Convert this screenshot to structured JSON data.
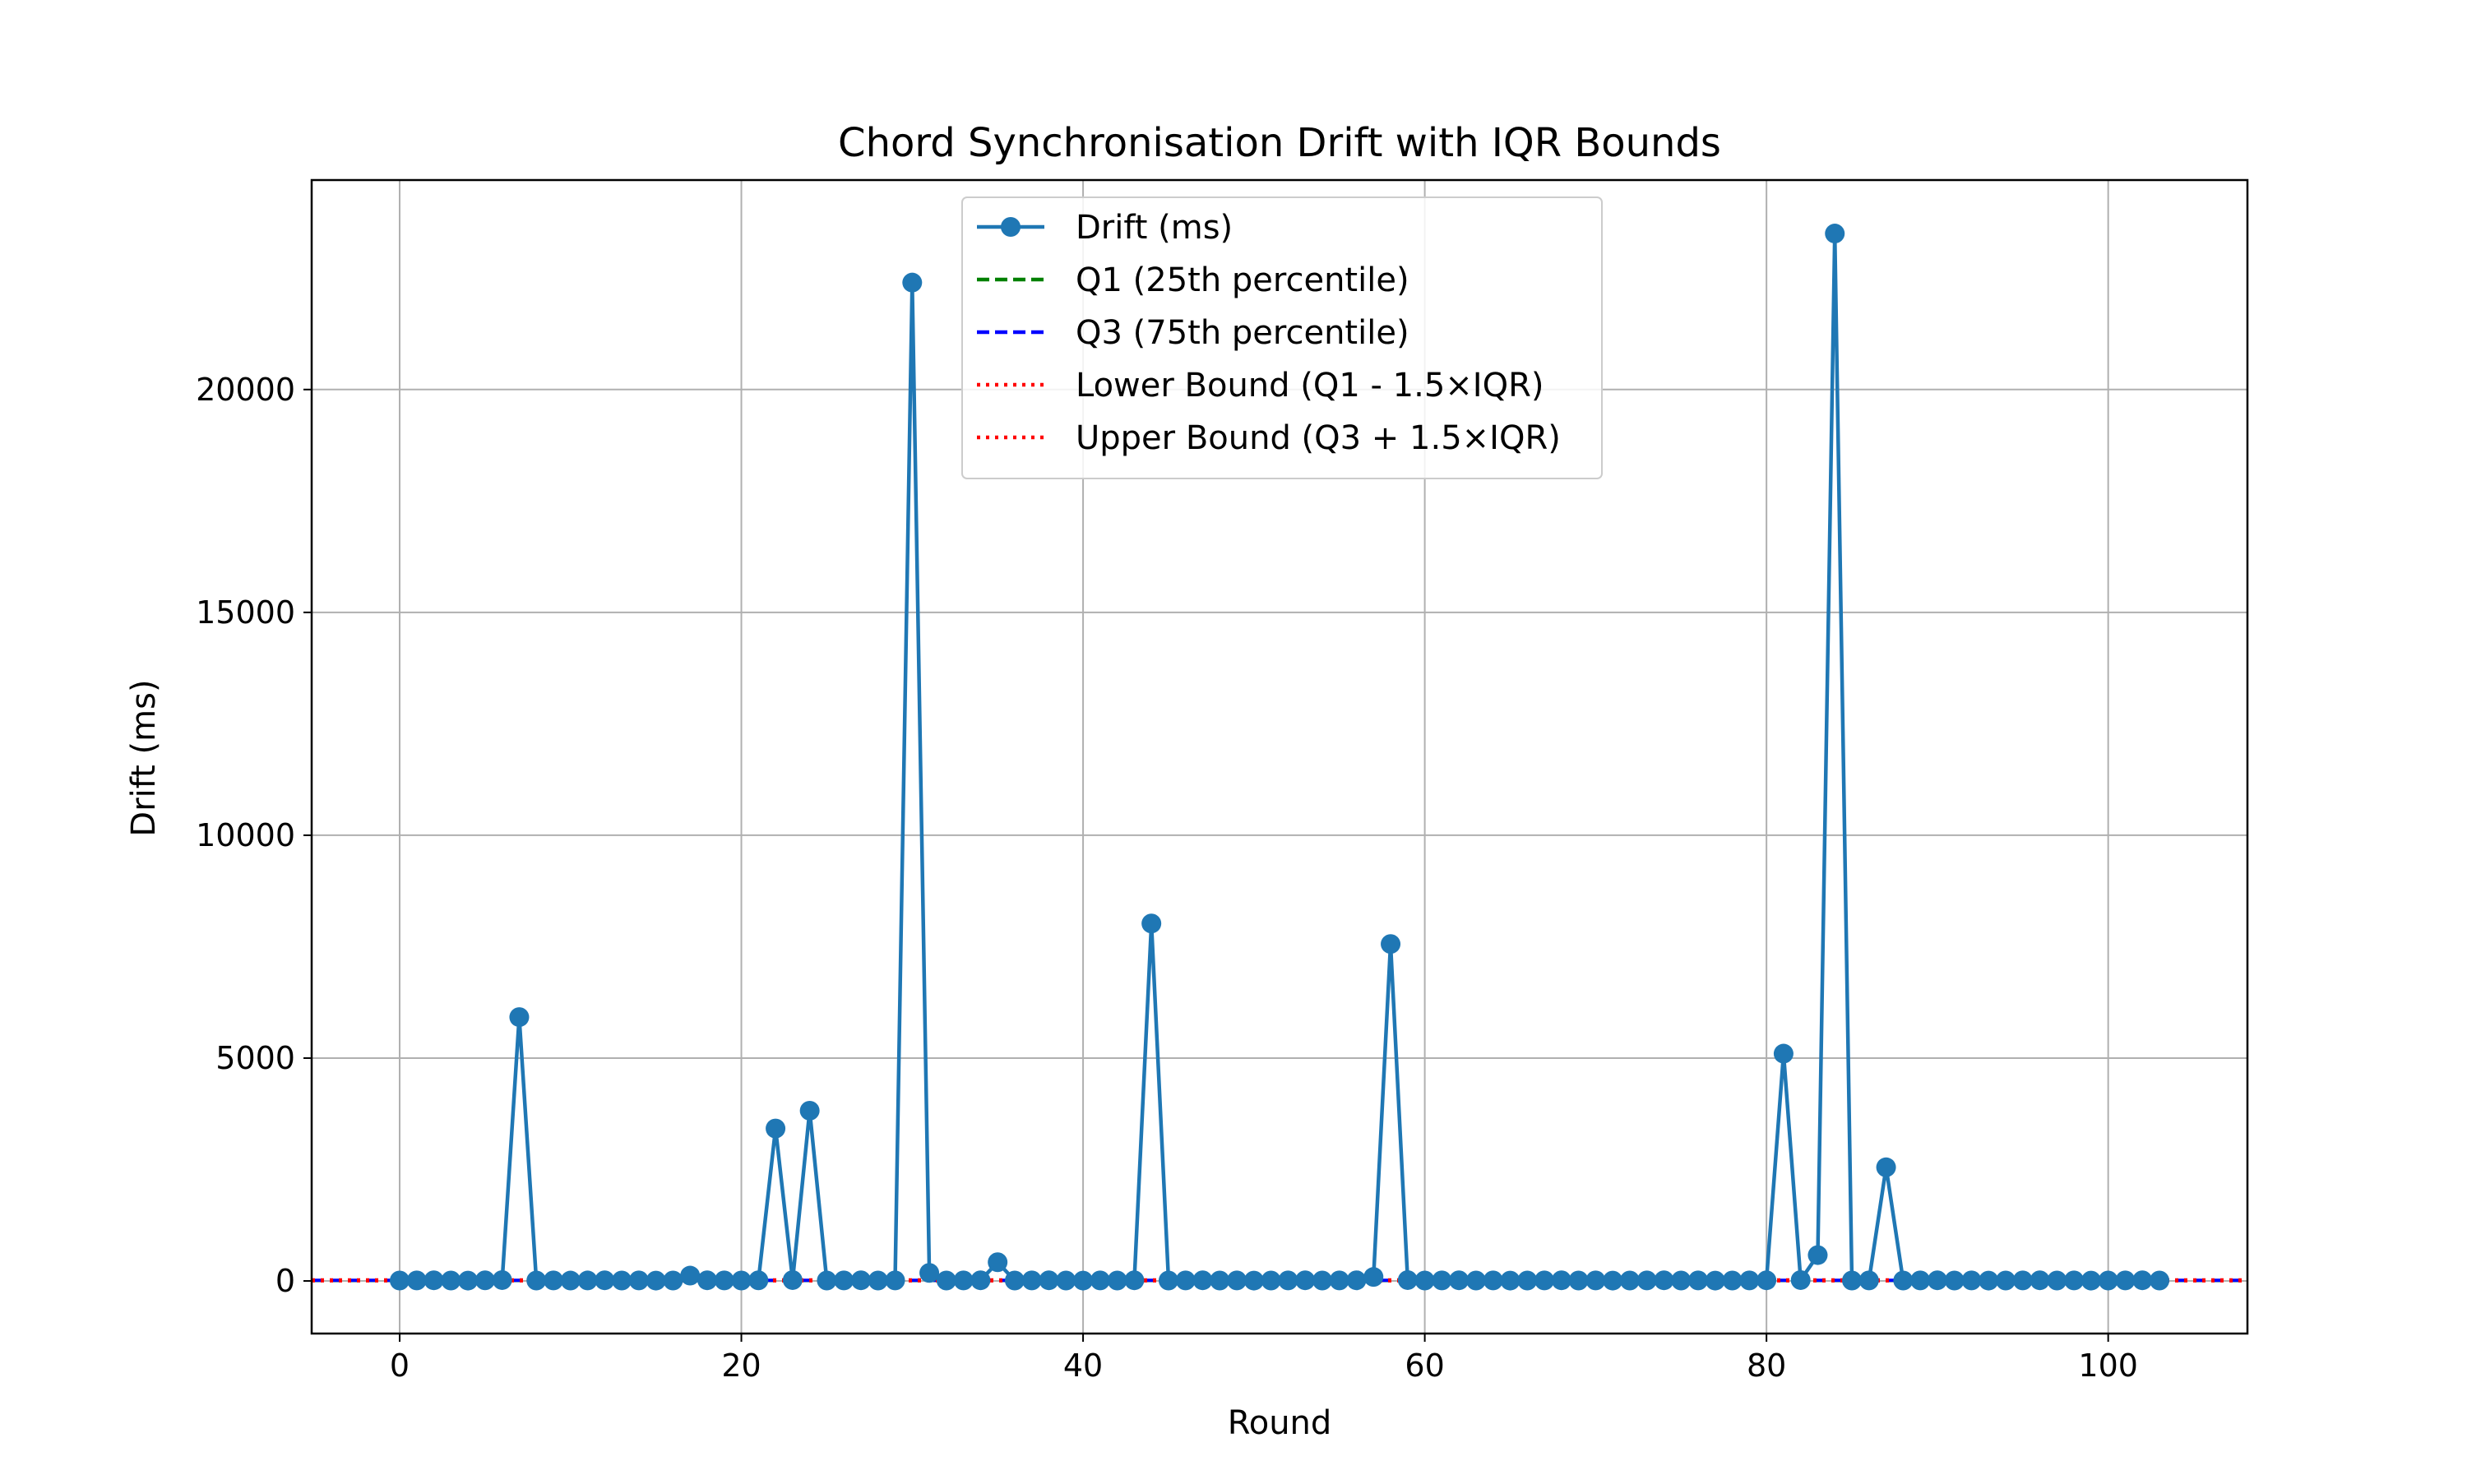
{
  "chart_data": {
    "type": "line",
    "title": "Chord Synchronisation Drift with IQR Bounds",
    "xlabel": "Round",
    "ylabel": "Drift (ms)",
    "xlim": [
      -5.15,
      108.15
    ],
    "ylim": [
      -1180,
      24700
    ],
    "xticks": [
      0,
      20,
      40,
      60,
      80,
      100
    ],
    "yticks": [
      0,
      5000,
      10000,
      15000,
      20000
    ],
    "grid": true,
    "legend_position": "upper center",
    "series": [
      {
        "name": "Drift (ms)",
        "color": "#1f77b4",
        "style": "line-markers",
        "x": [
          0,
          1,
          2,
          3,
          4,
          5,
          6,
          7,
          8,
          9,
          10,
          11,
          12,
          13,
          14,
          15,
          16,
          17,
          18,
          19,
          20,
          21,
          22,
          23,
          24,
          25,
          26,
          27,
          28,
          29,
          30,
          31,
          32,
          33,
          34,
          35,
          36,
          37,
          38,
          39,
          40,
          41,
          42,
          43,
          44,
          45,
          46,
          47,
          48,
          49,
          50,
          51,
          52,
          53,
          54,
          55,
          56,
          57,
          58,
          59,
          60,
          61,
          62,
          63,
          64,
          65,
          66,
          67,
          68,
          69,
          70,
          71,
          72,
          73,
          74,
          75,
          76,
          77,
          78,
          79,
          80,
          81,
          82,
          83,
          84,
          85,
          86,
          87,
          88,
          89,
          90,
          91,
          92,
          93,
          94,
          95,
          96,
          97,
          98,
          99,
          100,
          101,
          102,
          103
        ],
        "values": [
          10,
          12,
          15,
          10,
          8,
          14,
          20,
          5920,
          10,
          12,
          9,
          11,
          15,
          10,
          12,
          8,
          10,
          120,
          15,
          12,
          10,
          14,
          3420,
          20,
          3820,
          10,
          12,
          15,
          10,
          12,
          22400,
          180,
          10,
          12,
          15,
          420,
          10,
          12,
          15,
          10,
          8,
          12,
          10,
          15,
          8020,
          10,
          12,
          15,
          10,
          12,
          8,
          10,
          12,
          15,
          10,
          12,
          15,
          90,
          7560,
          20,
          10,
          12,
          15,
          10,
          12,
          8,
          10,
          12,
          15,
          10,
          12,
          8,
          10,
          12,
          15,
          10,
          12,
          8,
          10,
          12,
          15,
          5100,
          20,
          580,
          23500,
          10,
          12,
          2550,
          10,
          12,
          15,
          10,
          12,
          8,
          10,
          12,
          15,
          10,
          12,
          8,
          10,
          12,
          15,
          10
        ]
      },
      {
        "name": "Q1 (25th percentile)",
        "color": "#008000",
        "style": "dashed",
        "value": 10
      },
      {
        "name": "Q3 (75th percentile)",
        "color": "#0000ff",
        "style": "dashed",
        "value": 15
      },
      {
        "name": "Lower Bound (Q1 - 1.5×IQR)",
        "color": "#ff0000",
        "style": "dotted",
        "value": 2.5
      },
      {
        "name": "Upper Bound (Q3 + 1.5×IQR)",
        "color": "#ff0000",
        "style": "dotted",
        "value": 22.5
      }
    ]
  }
}
